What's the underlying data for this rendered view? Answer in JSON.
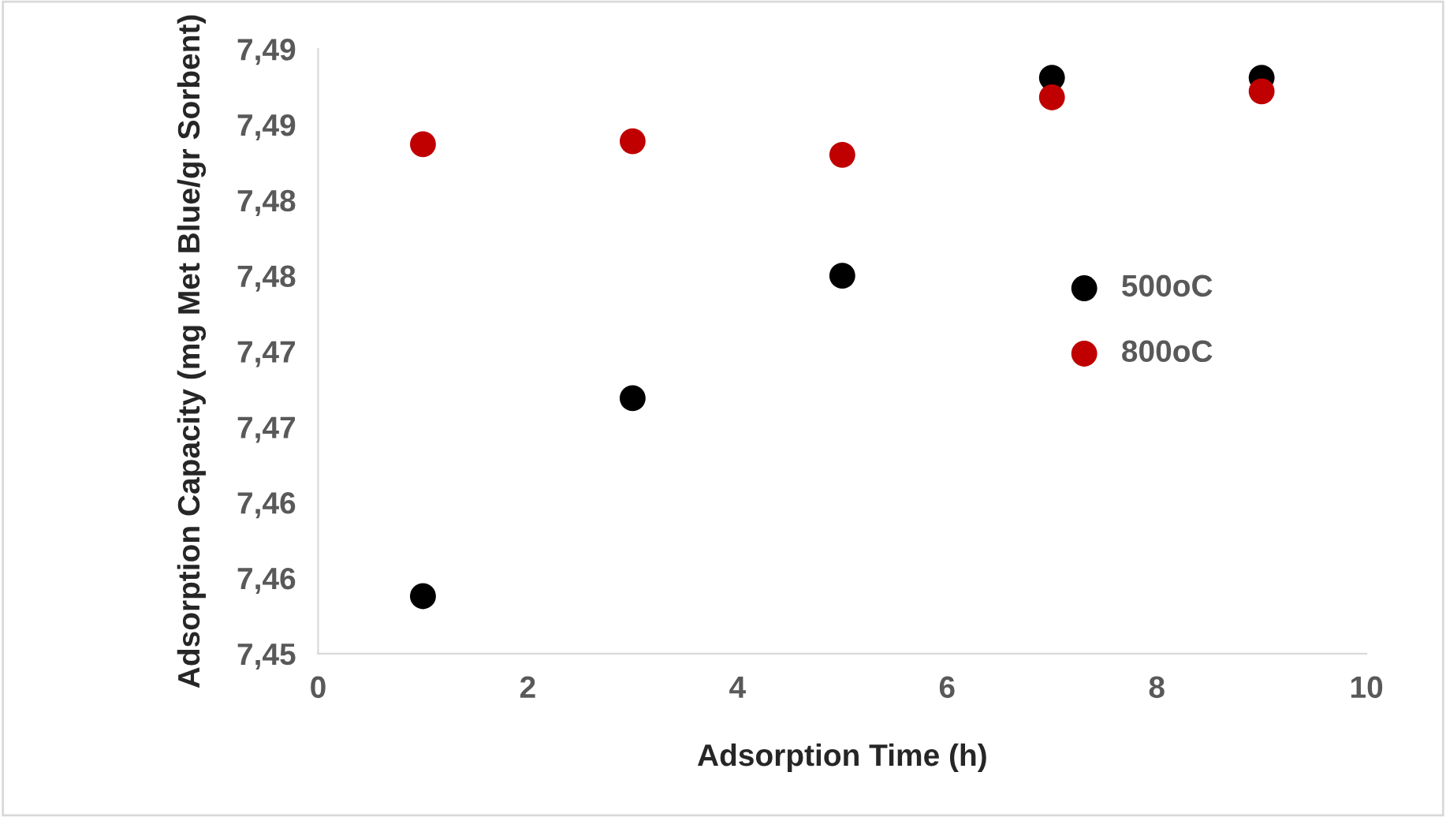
{
  "chart_data": {
    "type": "scatter",
    "xlabel": "Adsorption Time (h)",
    "ylabel": "Adsorption Capacity (mg Met Blue/gr Sorbent)",
    "x": [
      1,
      3,
      5,
      7,
      9
    ],
    "series": [
      {
        "name": "500oC",
        "color": "#000000",
        "values": [
          7.4538,
          7.4669,
          7.475,
          7.4881,
          7.4881
        ]
      },
      {
        "name": "800oC",
        "color": "#c00000",
        "values": [
          7.4837,
          7.4839,
          7.483,
          7.4868,
          7.4872
        ]
      }
    ],
    "xlim": [
      0,
      10
    ],
    "xticks": [
      0,
      2,
      4,
      6,
      8,
      10
    ],
    "ylim": [
      7.45,
      7.49
    ],
    "yticks": [
      {
        "value": 7.45,
        "label": "7,45"
      },
      {
        "value": 7.455,
        "label": "7,46"
      },
      {
        "value": 7.46,
        "label": "7,46"
      },
      {
        "value": 7.465,
        "label": "7,47"
      },
      {
        "value": 7.47,
        "label": "7,47"
      },
      {
        "value": 7.475,
        "label": "7,48"
      },
      {
        "value": 7.48,
        "label": "7,48"
      },
      {
        "value": 7.485,
        "label": "7,49"
      },
      {
        "value": 7.49,
        "label": "7,49"
      }
    ],
    "marker": "circle",
    "grid": false,
    "legend": "right"
  }
}
